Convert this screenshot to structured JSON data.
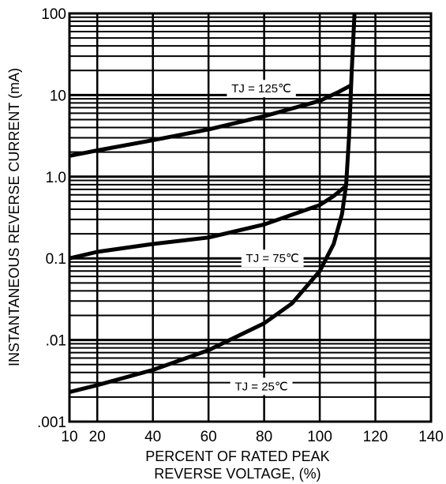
{
  "chart_data": {
    "type": "line",
    "title": "",
    "xlabel_lines": [
      "PERCENT OF RATED PEAK",
      "REVERSE VOLTAGE, (%)"
    ],
    "ylabel": "INSTANTANEOUS REVERSE CURRENT (mA)",
    "x_scale": "linear",
    "y_scale": "log",
    "xlim": [
      10,
      140
    ],
    "ylim": [
      0.001,
      100
    ],
    "x_ticks": [
      {
        "value": 10,
        "label": "10"
      },
      {
        "value": 20,
        "label": "20"
      },
      {
        "value": 40,
        "label": "40"
      },
      {
        "value": 60,
        "label": "60"
      },
      {
        "value": 80,
        "label": "80"
      },
      {
        "value": 100,
        "label": "100"
      },
      {
        "value": 120,
        "label": "120"
      },
      {
        "value": 140,
        "label": "140"
      }
    ],
    "y_ticks": [
      {
        "value": 100,
        "label": "100"
      },
      {
        "value": 10,
        "label": "10"
      },
      {
        "value": 1,
        "label": "1.0"
      },
      {
        "value": 0.1,
        "label": "0.1"
      },
      {
        "value": 0.01,
        "label": ".01"
      },
      {
        "value": 0.001,
        "label": ".001"
      }
    ],
    "grid": true,
    "legend": "none",
    "colors": {
      "line": "#000000",
      "grid": "#000000",
      "background": "#ffffff"
    },
    "series": [
      {
        "name": "TJ = 125℃",
        "x": [
          10,
          20,
          40,
          60,
          80,
          100,
          107,
          111
        ],
        "y": [
          1.8,
          2.1,
          2.8,
          3.8,
          5.5,
          8.5,
          11.0,
          13.0
        ]
      },
      {
        "name": "TJ = 75℃",
        "x": [
          10,
          20,
          40,
          60,
          80,
          100,
          105,
          109
        ],
        "y": [
          0.1,
          0.12,
          0.15,
          0.18,
          0.26,
          0.45,
          0.58,
          0.75
        ]
      },
      {
        "name": "TJ = 25℃",
        "x": [
          10,
          20,
          40,
          60,
          80,
          90,
          100,
          105,
          108,
          109.5,
          110.5,
          111.5,
          112.5
        ],
        "y": [
          0.0023,
          0.0028,
          0.0043,
          0.0075,
          0.016,
          0.028,
          0.07,
          0.15,
          0.35,
          0.8,
          3.0,
          20,
          100
        ]
      }
    ],
    "annotations": [
      {
        "text": "TJ = 125℃",
        "x": 79,
        "y": 12
      },
      {
        "text": "TJ = 75℃",
        "x": 83,
        "y": 0.1
      },
      {
        "text": "TJ = 25℃",
        "x": 79,
        "y": 0.0027
      }
    ]
  }
}
